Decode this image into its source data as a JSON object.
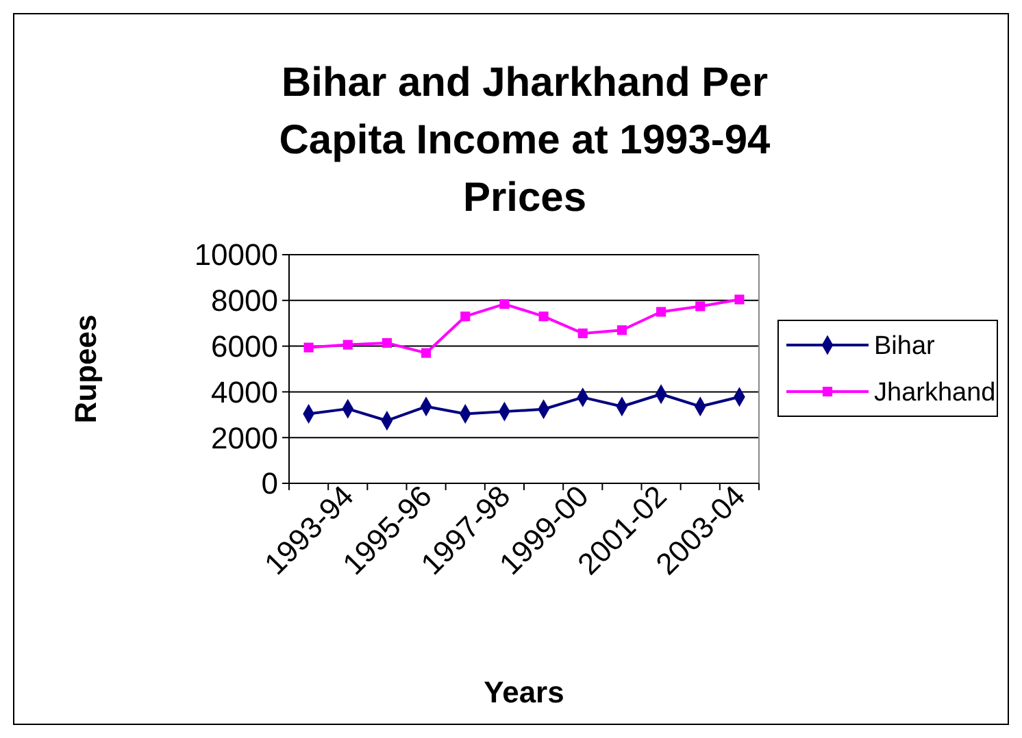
{
  "chart_data": {
    "type": "line",
    "title": "Bihar and Jharkhand Per Capita Income at 1993-94 Prices",
    "xlabel": "Years",
    "ylabel": "Rupees",
    "categories": [
      "1993-94",
      null,
      "1995-96",
      null,
      "1997-98",
      null,
      "1999-00",
      null,
      "2001-02",
      null,
      "2003-04",
      null
    ],
    "series": [
      {
        "name": "Bihar",
        "color": "#000080",
        "marker": "diamond",
        "values": [
          3040,
          3260,
          2740,
          3360,
          3040,
          3140,
          3240,
          3760,
          3360,
          3900,
          3360,
          3780
        ]
      },
      {
        "name": "Jharkhand",
        "color": "#ff00ff",
        "marker": "square",
        "values": [
          5940,
          6060,
          6140,
          5700,
          7300,
          7840,
          7300,
          6560,
          6700,
          7500,
          7740,
          8040
        ]
      }
    ],
    "ylim": [
      0,
      10000
    ],
    "yticks": [
      0,
      2000,
      4000,
      6000,
      8000,
      10000
    ],
    "grid": "y",
    "legend": "right"
  }
}
